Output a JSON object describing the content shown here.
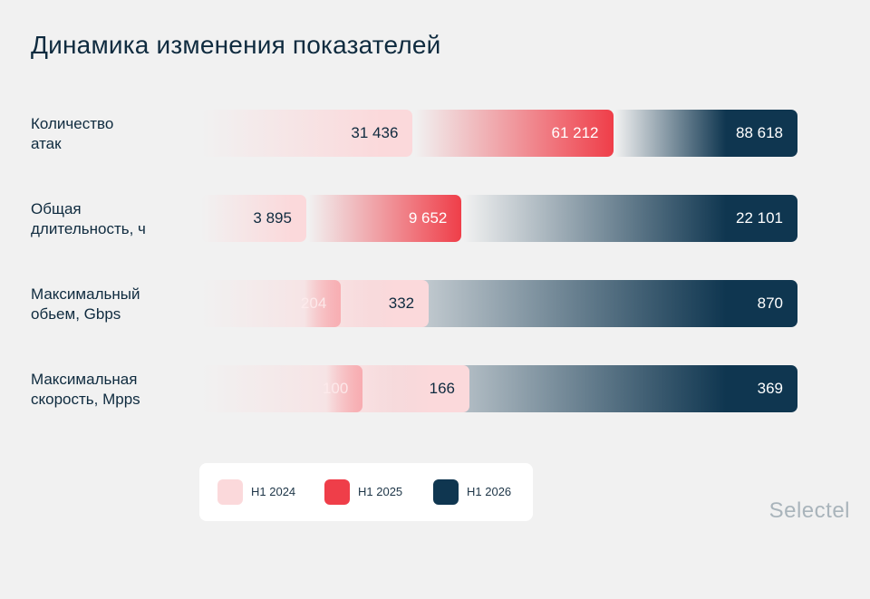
{
  "title": "Динамика изменения показателей",
  "colors": {
    "h1_2024": "#fbd9db",
    "h1_2025": "#ef3e49",
    "h1_2026": "#0f3650"
  },
  "chart_data": {
    "type": "bar",
    "orientation": "horizontal",
    "stacked": "overlapping",
    "title": "Динамика изменения показателей",
    "categories": [
      "Количество\nатак",
      "Общая\nдлительность, ч",
      "Максимальный\nобьем, Gbps",
      "Максимальная\nскорость, Mpps"
    ],
    "series": [
      {
        "name": "H1 2024",
        "values": [
          "31 436",
          "3 895",
          "332",
          "166"
        ]
      },
      {
        "name": "H1 2025",
        "values": [
          "61 212",
          "9 652",
          "204",
          "100"
        ]
      },
      {
        "name": "H1  2026",
        "values": [
          "88 618",
          "22 101",
          "870",
          "369"
        ]
      }
    ],
    "legend_position": "bottom-left",
    "grid": false
  },
  "brand": "Selectel"
}
